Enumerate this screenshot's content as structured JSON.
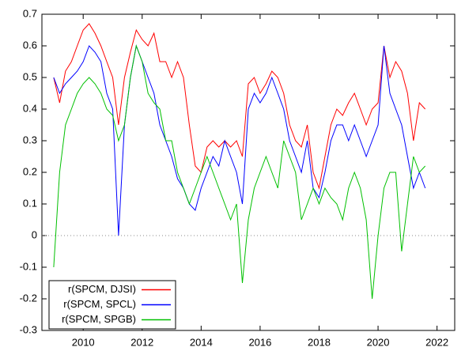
{
  "chart_data": {
    "type": "line",
    "x": [
      2009,
      2009.2,
      2009.4,
      2009.6,
      2009.8,
      2010,
      2010.2,
      2010.4,
      2010.6,
      2010.8,
      2011,
      2011.2,
      2011.4,
      2011.6,
      2011.8,
      2012,
      2012.2,
      2012.4,
      2012.6,
      2012.8,
      2013,
      2013.2,
      2013.4,
      2013.6,
      2013.8,
      2014,
      2014.2,
      2014.4,
      2014.6,
      2014.8,
      2015,
      2015.2,
      2015.4,
      2015.6,
      2015.8,
      2016,
      2016.2,
      2016.4,
      2016.6,
      2016.8,
      2017,
      2017.2,
      2017.4,
      2017.6,
      2017.8,
      2018,
      2018.2,
      2018.4,
      2018.6,
      2018.8,
      2019,
      2019.2,
      2019.4,
      2019.6,
      2019.8,
      2020,
      2020.2,
      2020.4,
      2020.6,
      2020.8,
      2021,
      2021.2,
      2021.4,
      2021.6
    ],
    "series": [
      {
        "name": "r(SPCM, DJSI)",
        "color": "#ff0000",
        "values": [
          0.5,
          0.42,
          0.52,
          0.55,
          0.6,
          0.65,
          0.67,
          0.64,
          0.6,
          0.55,
          0.5,
          0.35,
          0.5,
          0.58,
          0.65,
          0.62,
          0.6,
          0.64,
          0.55,
          0.55,
          0.5,
          0.55,
          0.5,
          0.35,
          0.22,
          0.2,
          0.28,
          0.3,
          0.28,
          0.3,
          0.28,
          0.3,
          0.25,
          0.48,
          0.5,
          0.45,
          0.48,
          0.52,
          0.5,
          0.45,
          0.35,
          0.3,
          0.28,
          0.35,
          0.2,
          0.15,
          0.25,
          0.35,
          0.4,
          0.38,
          0.42,
          0.45,
          0.4,
          0.35,
          0.4,
          0.42,
          0.6,
          0.5,
          0.55,
          0.52,
          0.45,
          0.3,
          0.42,
          0.4
        ]
      },
      {
        "name": "r(SPCM, SPCL)",
        "color": "#0000ff",
        "values": [
          0.5,
          0.45,
          0.48,
          0.5,
          0.52,
          0.55,
          0.6,
          0.58,
          0.55,
          0.45,
          0.4,
          0.0,
          0.35,
          0.5,
          0.6,
          0.55,
          0.5,
          0.45,
          0.35,
          0.3,
          0.25,
          0.18,
          0.15,
          0.1,
          0.08,
          0.15,
          0.2,
          0.25,
          0.22,
          0.3,
          0.25,
          0.2,
          0.1,
          0.4,
          0.45,
          0.42,
          0.45,
          0.5,
          0.45,
          0.4,
          0.3,
          0.25,
          0.2,
          0.3,
          0.15,
          0.12,
          0.2,
          0.3,
          0.35,
          0.35,
          0.3,
          0.35,
          0.3,
          0.25,
          0.3,
          0.35,
          0.6,
          0.45,
          0.4,
          0.35,
          0.25,
          0.15,
          0.2,
          0.15
        ]
      },
      {
        "name": "r(SPCM, SPGB)",
        "color": "#00c000",
        "values": [
          -0.1,
          0.2,
          0.35,
          0.4,
          0.45,
          0.48,
          0.5,
          0.48,
          0.45,
          0.4,
          0.38,
          0.3,
          0.35,
          0.5,
          0.6,
          0.55,
          0.45,
          0.42,
          0.4,
          0.3,
          0.3,
          0.2,
          0.15,
          0.1,
          0.15,
          0.2,
          0.25,
          0.2,
          0.15,
          0.1,
          0.05,
          0.1,
          -0.15,
          0.05,
          0.15,
          0.2,
          0.25,
          0.2,
          0.15,
          0.3,
          0.25,
          0.2,
          0.05,
          0.1,
          0.15,
          0.1,
          0.15,
          0.12,
          0.1,
          0.05,
          0.15,
          0.2,
          0.15,
          0.05,
          -0.2,
          0.0,
          0.15,
          0.2,
          0.2,
          -0.05,
          0.1,
          0.25,
          0.2,
          0.22
        ]
      }
    ],
    "xlim": [
      2008.6,
      2022.6
    ],
    "xticks": [
      2010,
      2012,
      2014,
      2016,
      2018,
      2020,
      2022
    ],
    "ylim": [
      -0.3,
      0.7
    ],
    "yticks": [
      -0.3,
      -0.2,
      -0.1,
      0,
      0.1,
      0.2,
      0.3,
      0.4,
      0.5,
      0.6,
      0.7
    ],
    "zero_line": true,
    "legend": "lower left"
  }
}
